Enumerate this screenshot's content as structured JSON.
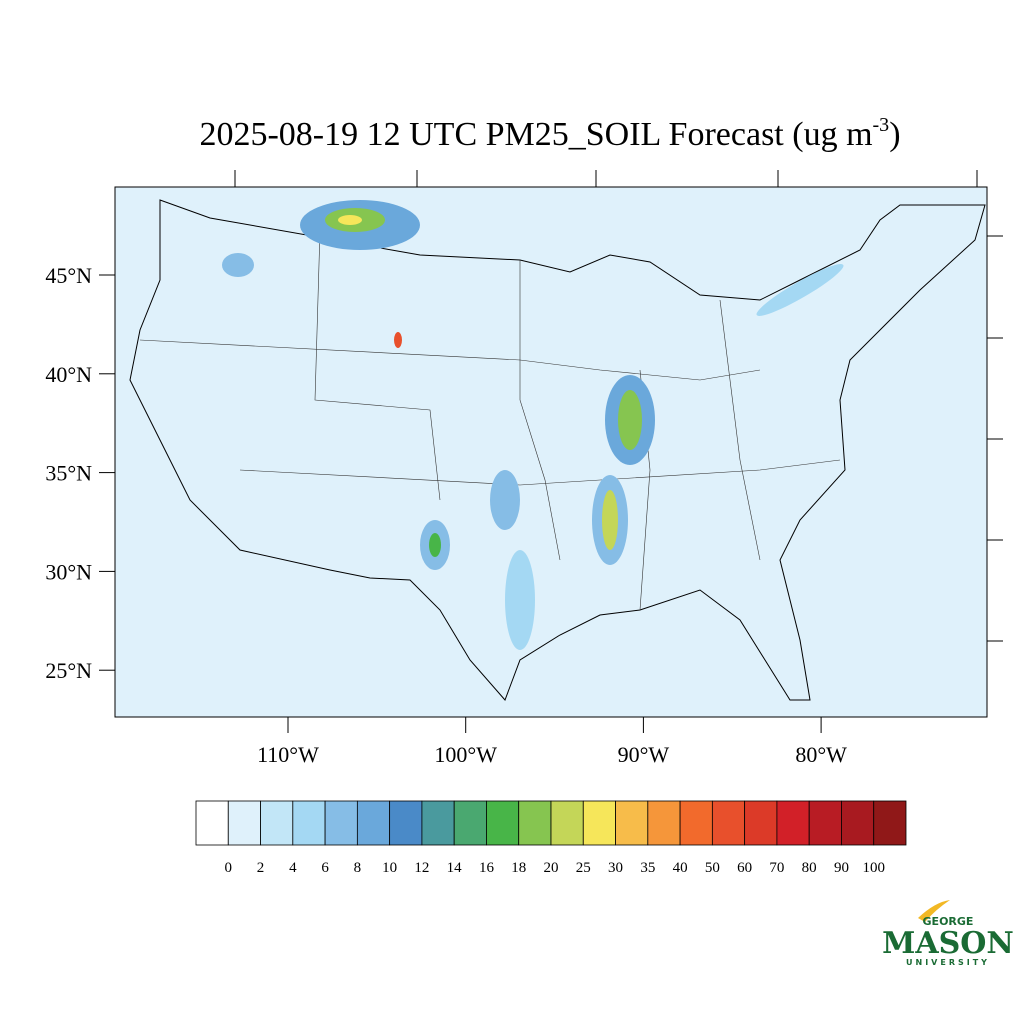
{
  "title": {
    "main": "2025-08-19 12 UTC PM25_SOIL Forecast (ug m",
    "superscript": "-3",
    "end": ")"
  },
  "lat_labels": [
    "45°N",
    "40°N",
    "35°N",
    "30°N",
    "25°N"
  ],
  "lon_labels": [
    "110°W",
    "100°W",
    "90°W",
    "80°W"
  ],
  "colorbar": {
    "levels": [
      0,
      2,
      4,
      6,
      8,
      10,
      12,
      14,
      16,
      18,
      20,
      25,
      30,
      35,
      40,
      50,
      60,
      70,
      80,
      90,
      100
    ],
    "colors": [
      "#ffffff",
      "#dff1fb",
      "#c2e6f7",
      "#a4d8f3",
      "#86bde6",
      "#6aa8db",
      "#4a8ac8",
      "#4a9a9e",
      "#4aa870",
      "#48b548",
      "#86c550",
      "#c4d658",
      "#f6e65a",
      "#f7bc4a",
      "#f5963a",
      "#f26a2c",
      "#e8502c",
      "#dc3a28",
      "#d22028",
      "#b81c24",
      "#a81a20",
      "#901818"
    ]
  },
  "logo": {
    "top": "GEORGE",
    "main": "MASON",
    "bottom": "UNIVERSITY"
  }
}
